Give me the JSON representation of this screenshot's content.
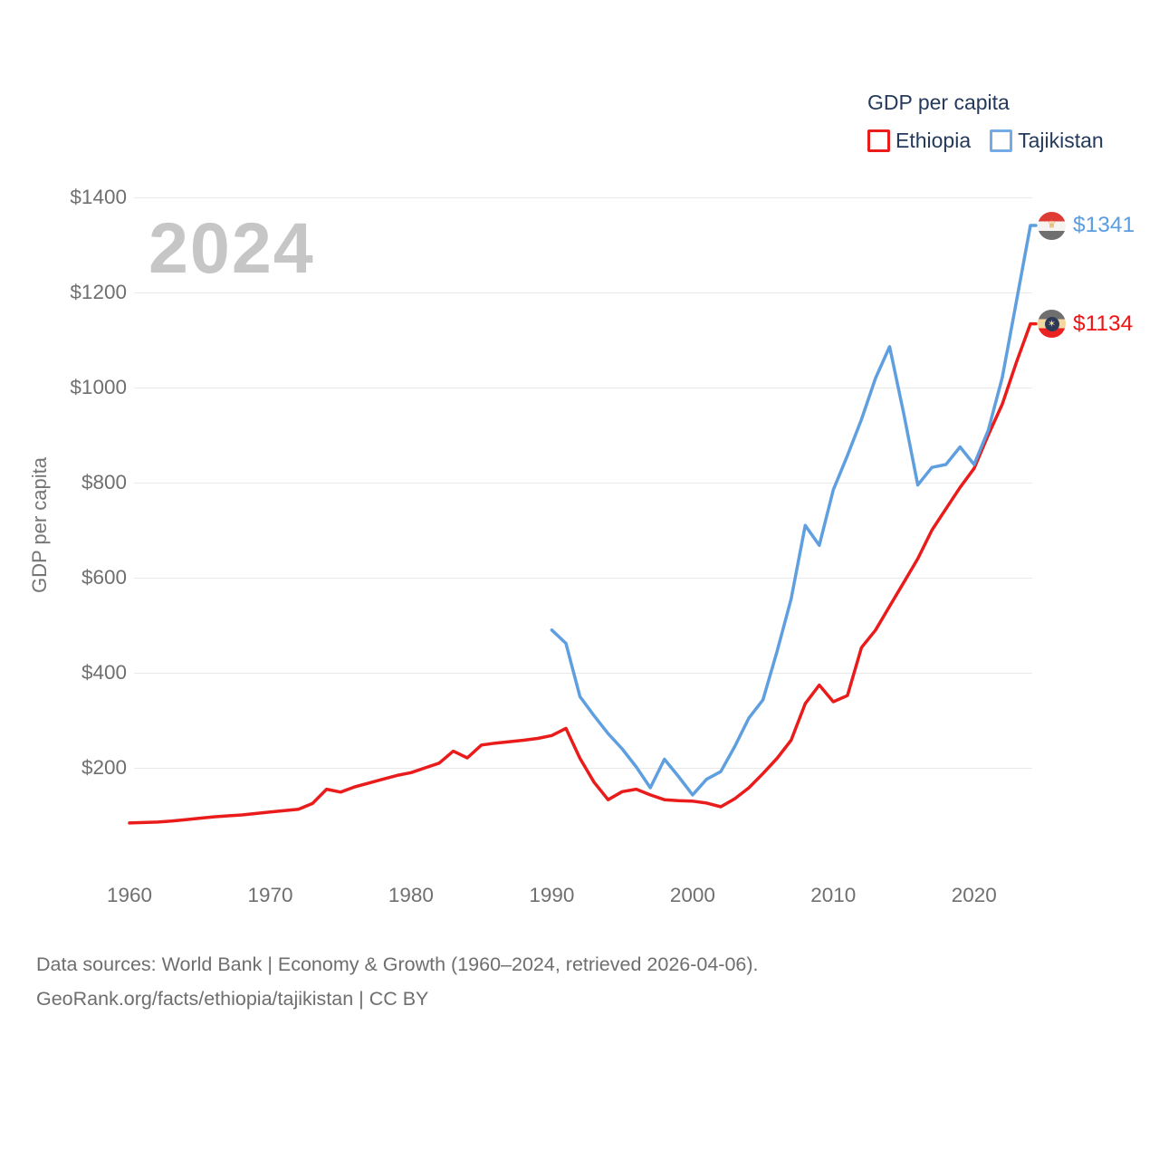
{
  "watermark": "2024",
  "ylabel": "GDP per capita",
  "legend": {
    "title": "GDP per capita",
    "items": [
      {
        "label": "Ethiopia",
        "color": "#ea1b1b"
      },
      {
        "label": "Tajikistan",
        "color": "#5f9fdf"
      }
    ]
  },
  "footer": {
    "line1": "Data sources: World Bank | Economy & Growth (1960–2024, retrieved 2026-04-06).",
    "line2": "GeoRank.org/facts/ethiopia/tajikistan | CC BY"
  },
  "chart_data": {
    "type": "line",
    "title": "GDP per capita",
    "ylabel": "GDP per capita",
    "xlim": [
      1960,
      2024
    ],
    "ylim": [
      0,
      1400
    ],
    "x_ticks": [
      1960,
      1970,
      1980,
      1990,
      2000,
      2010,
      2020
    ],
    "y_ticks": [
      200,
      400,
      600,
      800,
      1000,
      1200,
      1400
    ],
    "y_tick_prefix": "$",
    "grid": true,
    "legend_position": "top-right",
    "series": [
      {
        "name": "Ethiopia",
        "color": "#ea1b1b",
        "end_label": "$1134",
        "end_value": 1134,
        "start_year": 1960,
        "values": [
          84,
          85,
          86,
          88,
          91,
          94,
          97,
          99,
          101,
          104,
          107,
          110,
          113,
          125,
          155,
          149,
          160,
          168,
          176,
          184,
          190,
          200,
          210,
          235,
          221,
          248,
          252,
          255,
          258,
          262,
          268,
          283,
          220,
          170,
          133,
          150,
          155,
          143,
          133,
          131,
          130,
          126,
          118,
          135,
          158,
          188,
          220,
          258,
          335,
          374,
          339,
          352,
          453,
          490,
          540,
          590,
          640,
          700,
          745,
          790,
          830,
          900,
          965,
          1053,
          1134
        ]
      },
      {
        "name": "Tajikistan",
        "color": "#5f9fdf",
        "end_label": "$1341",
        "end_value": 1341,
        "start_year": 1990,
        "values": [
          490,
          462,
          350,
          310,
          272,
          240,
          202,
          158,
          218,
          182,
          143,
          176,
          192,
          245,
          305,
          343,
          445,
          555,
          710,
          668,
          785,
          857,
          933,
          1020,
          1086,
          945,
          795,
          832,
          838,
          875,
          838,
          910,
          1021,
          1181,
          1341
        ]
      }
    ]
  }
}
